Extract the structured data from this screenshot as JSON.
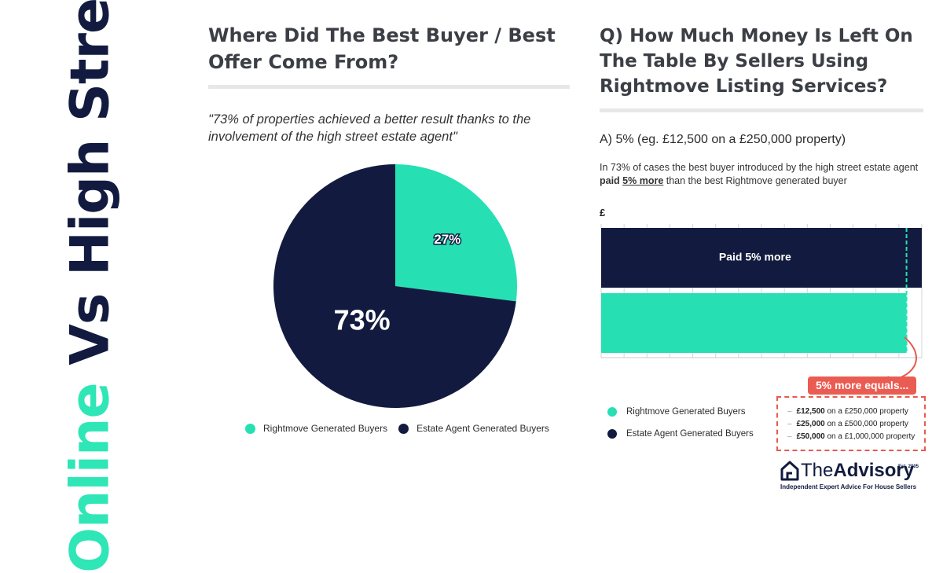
{
  "banner": {
    "word1": "Online",
    "word2": " Vs High Street"
  },
  "left": {
    "title": "Where Did The Best Buyer / Best Offer Come From?",
    "quote": "\"73% of properties achieved a better result thanks to the involvement of the high street estate agent\""
  },
  "right": {
    "title": "Q) How Much Money Is Left On The Table By Sellers Using Rightmove Listing Services?",
    "answer": "A) 5% (eg. £12,500 on a £250,000 property)",
    "desc_pre": "In 73% of cases the best buyer introduced by the high street estate agent ",
    "desc_paid": "paid ",
    "desc_ul": "5% more",
    "desc_post": " than the best Rightmove generated buyer",
    "callout": "5% more equals...",
    "equals": [
      {
        "amount": "£12,500",
        "text": " on a £250,000 property"
      },
      {
        "amount": "£25,000",
        "text": " on a £500,000 property"
      },
      {
        "amount": "£50,000",
        "text": " on a £1,000,000 property"
      }
    ]
  },
  "logo": {
    "name_a": "The",
    "name_b": "Advisory",
    "est": "Est. 2005",
    "tagline": "Independent Expert Advice For House Sellers"
  },
  "colors": {
    "rightmove": "#26e0b4",
    "agent": "#121b3f",
    "accent": "#ea5c52"
  },
  "chart_data": [
    {
      "type": "pie",
      "title": "Where Did The Best Buyer / Best Offer Come From?",
      "labels": [
        "Rightmove Generated Buyers",
        "Estate Agent Generated Buyers"
      ],
      "values": [
        27,
        73
      ],
      "data_labels": [
        "27%",
        "73%"
      ],
      "legend": "bottom"
    },
    {
      "type": "bar",
      "orientation": "horizontal",
      "ylabel": "£",
      "categories": [
        "Estate Agent Generated Buyers",
        "Rightmove Generated Buyers"
      ],
      "values": [
        105,
        100
      ],
      "data_labels": [
        "Paid 5% more",
        ""
      ],
      "grid": true,
      "legend": "bottom-left"
    }
  ]
}
